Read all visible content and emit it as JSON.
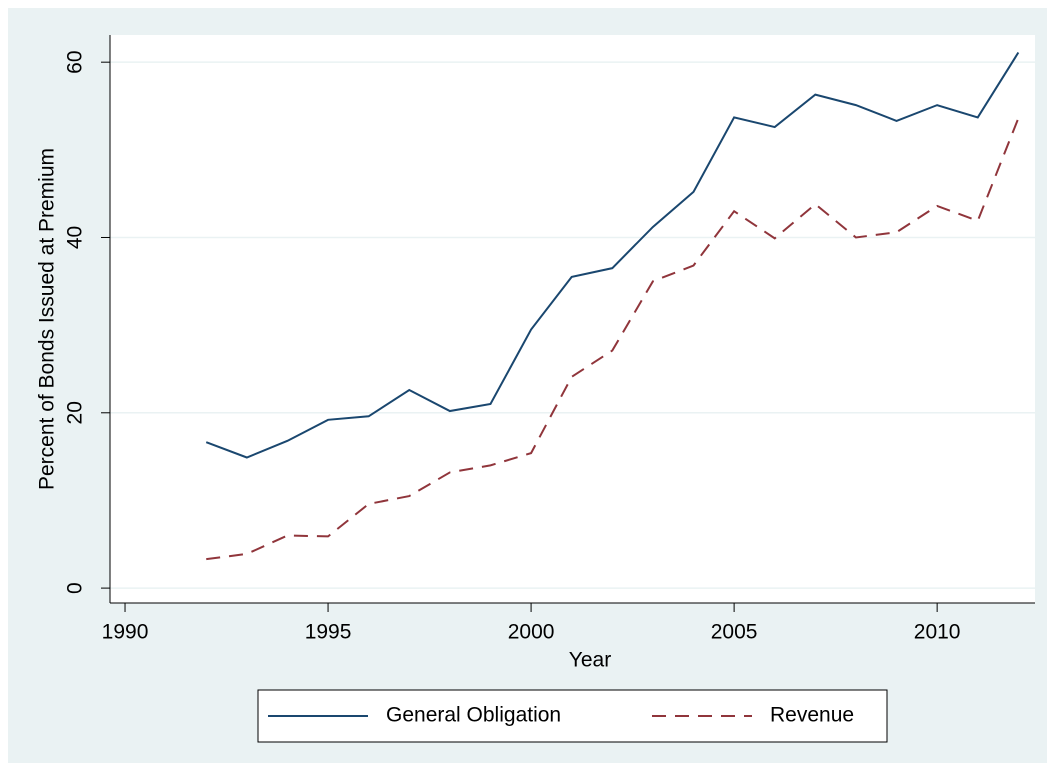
{
  "chart_data": {
    "type": "line",
    "x_label": "Year",
    "y_label": "Percent of Bonds Issued at Premium",
    "x": [
      1992,
      1993,
      1994,
      1995,
      1996,
      1997,
      1998,
      1999,
      2000,
      2001,
      2002,
      2003,
      2004,
      2005,
      2006,
      2007,
      2008,
      2009,
      2010,
      2011,
      2012
    ],
    "series": [
      {
        "name": "General Obligation",
        "color": "#1a476f",
        "line_style": "solid",
        "values": [
          16.65,
          14.9,
          16.8,
          19.2,
          19.6,
          22.6,
          20.2,
          21.0,
          29.5,
          35.5,
          36.5,
          41.2,
          45.2,
          53.7,
          52.6,
          56.3,
          55.1,
          53.3,
          55.1,
          53.7,
          61.1
        ]
      },
      {
        "name": "Revenue",
        "color": "#90353b",
        "line_style": "dashed",
        "values": [
          3.3,
          3.9,
          6.0,
          5.9,
          9.6,
          10.5,
          13.2,
          14.0,
          15.4,
          24.1,
          27.1,
          35.0,
          36.8,
          43.0,
          39.9,
          43.8,
          40.0,
          40.6,
          43.6,
          41.9,
          53.6
        ]
      }
    ],
    "xlim": [
      1989.63,
      2012.41
    ],
    "xticks": [
      1990,
      1995,
      2000,
      2005,
      2010
    ],
    "ylim": [
      -1.7,
      63.1
    ],
    "yticks": [
      0,
      20,
      40,
      60
    ],
    "grid": true,
    "legend_position": "bottom"
  }
}
